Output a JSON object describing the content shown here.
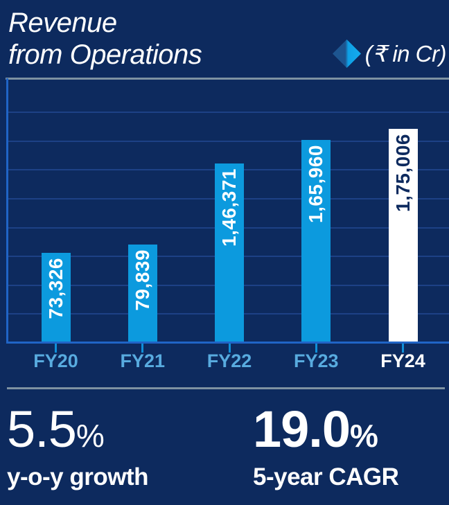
{
  "header": {
    "title": "Revenue\nfrom Operations",
    "unit_label": "(₹ in Cr)"
  },
  "chart_data": {
    "type": "bar",
    "title": "Revenue from Operations",
    "unit": "₹ in Cr",
    "categories": [
      "FY20",
      "FY21",
      "FY22",
      "FY23",
      "FY24"
    ],
    "values": [
      73326,
      79839,
      146371,
      165960,
      175006
    ],
    "value_labels": [
      "73,326",
      "79,839",
      "1,46,371",
      "1,65,960",
      "1,75,006"
    ],
    "ylim": [
      0,
      175006
    ],
    "grid": true,
    "gridline_count": 8,
    "highlight_last_bar": true,
    "colors": {
      "background": "#0d2a5e",
      "bar": "#0c9ade",
      "bar_highlight": "#ffffff",
      "bar_label": "#ffffff",
      "bar_label_on_highlight": "#0d2a5e",
      "axis": "#2064c6",
      "gridline": "#1d4186",
      "tick": "#0f8fd8",
      "x_label": "#58abdf",
      "x_label_highlight": "#ffffff",
      "separator": "#7e92a2"
    }
  },
  "stats": [
    {
      "value": "5.5",
      "suffix": "%",
      "label": "y-o-y growth",
      "bold": false
    },
    {
      "value": "19.0",
      "suffix": "%",
      "label": "5-year CAGR",
      "bold": true
    }
  ]
}
